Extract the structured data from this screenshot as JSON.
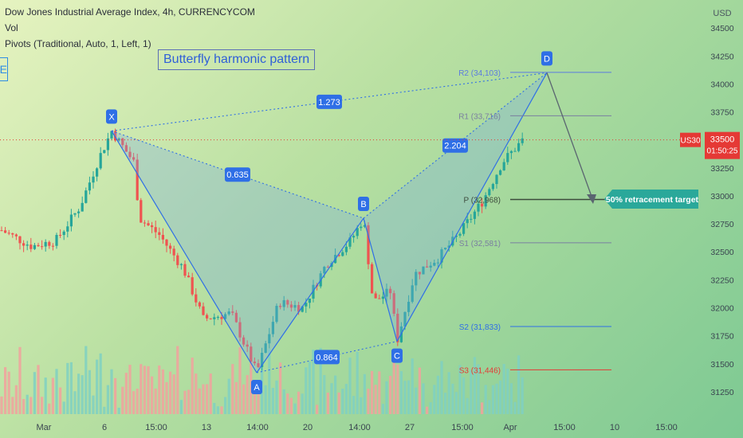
{
  "header": {
    "title_line": "Dow Jones Industrial Average Index, 4h, CURRENCYCOM",
    "vol_line": "Vol",
    "pivots_line": "Pivots (Traditional, Auto, 1, Left, 1)"
  },
  "annotation": {
    "pattern_title": "Butterfly harmonic pattern",
    "left_edge_label": "E",
    "target_label": "50% retracement target"
  },
  "price_tag": {
    "symbol": "US30",
    "price": "33500",
    "countdown": "01:50:25"
  },
  "colors": {
    "up": "#26a69a",
    "down": "#ef5350",
    "pattern_blue": "#2f6fe6",
    "tag_red": "#e53935",
    "target_teal": "#2aa89a"
  },
  "chart_data": {
    "type": "candlestick",
    "title": "Dow Jones Industrial Average Index, 4h, CURRENCYCOM",
    "currency": "USD",
    "ylim": [
      31050,
      34750
    ],
    "y_ticks": [
      31250,
      31500,
      31750,
      32000,
      32250,
      32500,
      32750,
      33000,
      33250,
      33500,
      33750,
      34000,
      34250,
      34500
    ],
    "x_tick_labels": [
      "Mar",
      "6",
      "15:00",
      "13",
      "14:00",
      "20",
      "14:00",
      "27",
      "15:00",
      "Apr",
      "15:00",
      "10",
      "15:00"
    ],
    "last_price": 33500,
    "harmonic_points": [
      {
        "label": "X",
        "price": 33580
      },
      {
        "label": "A",
        "price": 31420
      },
      {
        "label": "B",
        "price": 32800
      },
      {
        "label": "C",
        "price": 31700
      },
      {
        "label": "D",
        "price": 34100
      }
    ],
    "ratios": [
      {
        "label": "1.273",
        "leg": "XA-XD"
      },
      {
        "label": "0.635",
        "leg": "XA-AB"
      },
      {
        "label": "0.864",
        "leg": "AB-BC"
      },
      {
        "label": "2.204",
        "leg": "BC-CD"
      }
    ],
    "pivots": [
      {
        "label": "R2 (34,103)",
        "value": 34103,
        "color": "#5b7be0"
      },
      {
        "label": "R1 (33,716)",
        "value": 33716,
        "color": "#7a7fa0"
      },
      {
        "label": "P (32,968)",
        "value": 32968,
        "color": "#3c4a3c"
      },
      {
        "label": "S1 (32,581)",
        "value": 32581,
        "color": "#7a7fa0"
      },
      {
        "label": "S2 (31,833)",
        "value": 31833,
        "color": "#2f6fe6"
      },
      {
        "label": "S3 (31,446)",
        "value": 31446,
        "color": "#e53935"
      }
    ]
  }
}
